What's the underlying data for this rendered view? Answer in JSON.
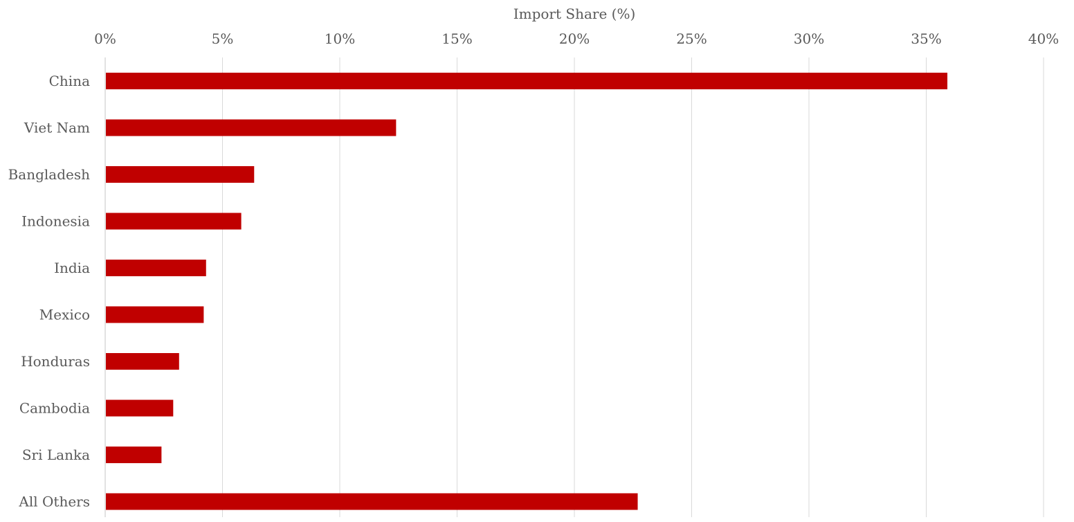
{
  "chart_data": {
    "type": "bar",
    "orientation": "horizontal",
    "xlabel": "Import Share (%)",
    "ylabel": "",
    "xlim": [
      0,
      40
    ],
    "x_ticks": [
      0,
      5,
      10,
      15,
      20,
      25,
      30,
      35,
      40
    ],
    "x_tick_labels": [
      "0%",
      "5%",
      "10%",
      "15%",
      "20%",
      "25%",
      "30%",
      "35%",
      "40%"
    ],
    "x_axis_position": "top",
    "grid": true,
    "bar_color": "#C00000",
    "categories": [
      "China",
      "Viet Nam",
      "Bangladesh",
      "Indonesia",
      "India",
      "Mexico",
      "Honduras",
      "Cambodia",
      "Sri Lanka",
      "All Others"
    ],
    "values": [
      35.9,
      12.4,
      6.35,
      5.8,
      4.3,
      4.2,
      3.15,
      2.9,
      2.4,
      22.7
    ]
  }
}
